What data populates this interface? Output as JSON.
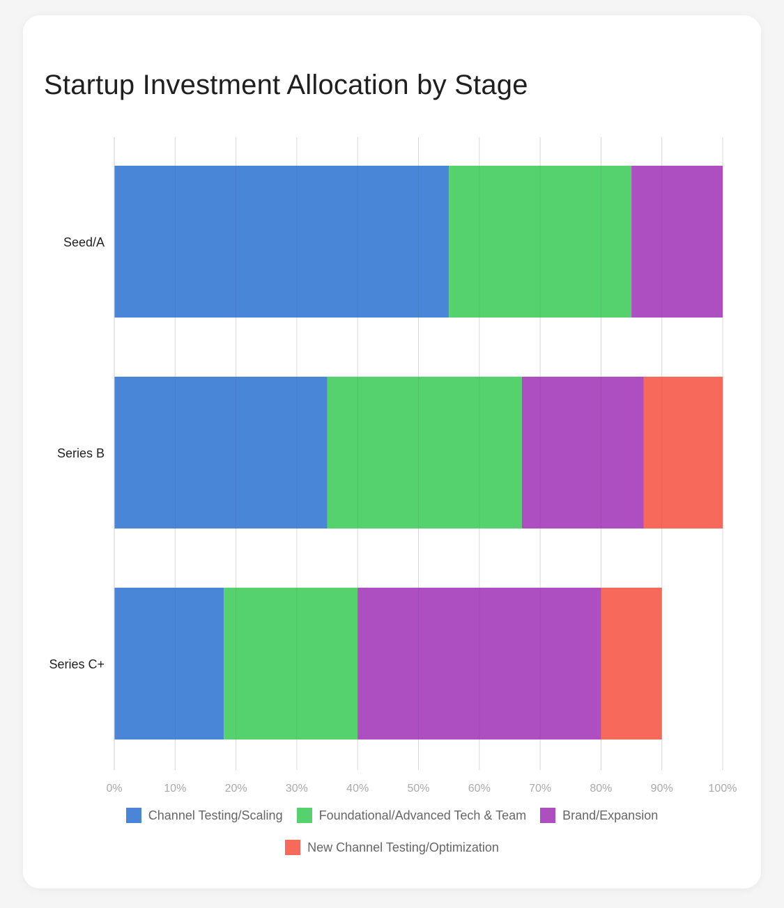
{
  "chart_data": {
    "type": "bar",
    "orientation": "horizontal",
    "stacked": true,
    "title": "Startup Investment Allocation by Stage",
    "categories": [
      "Seed/A",
      "Series B",
      "Series C+"
    ],
    "series": [
      {
        "name": "Channel Testing/Scaling",
        "color": "#4a86d8",
        "values": [
          55,
          35,
          18
        ]
      },
      {
        "name": "Foundational/Advanced Tech & Team",
        "color": "#55d16e",
        "values": [
          30,
          32,
          22
        ]
      },
      {
        "name": "Brand/Expansion",
        "color": "#ad4fc1",
        "values": [
          15,
          20,
          40
        ]
      },
      {
        "name": "New Channel Testing/Optimization",
        "color": "#f7695a",
        "values": [
          0,
          13,
          10
        ]
      }
    ],
    "xlim": [
      0,
      100
    ],
    "xticks": [
      0,
      10,
      20,
      30,
      40,
      50,
      60,
      70,
      80,
      90,
      100
    ],
    "xtick_suffix": "%",
    "grid": true,
    "legend_position": "bottom"
  }
}
